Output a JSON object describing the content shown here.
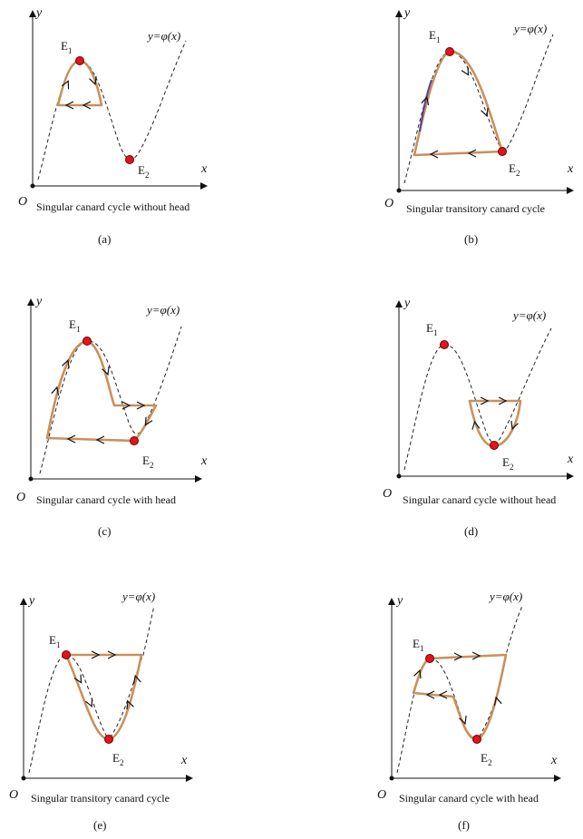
{
  "panels": [
    {
      "id": "a",
      "caption": "Singular canard  cycle without head",
      "sub": "(a)",
      "curve": "y=φ(x)",
      "origin": "O",
      "x": "x",
      "y": "y",
      "e1": "E",
      "e2": "E",
      "e1sub": "1",
      "e2sub": "2"
    },
    {
      "id": "b",
      "caption": "Singular transitory canard  cycle",
      "sub": "(b)",
      "curve": "y=φ(x)",
      "origin": "O",
      "x": "x",
      "y": "y",
      "e1": "E",
      "e2": "E",
      "e1sub": "1",
      "e2sub": "2"
    },
    {
      "id": "c",
      "caption": "Singular canard  cycle with head",
      "sub": "(c)",
      "curve": "y=φ(x)",
      "origin": "O",
      "x": "x",
      "y": "y",
      "e1": "E",
      "e2": "E",
      "e1sub": "1",
      "e2sub": "2"
    },
    {
      "id": "d",
      "caption": "Singular canard  cycle without head",
      "sub": "(d)",
      "curve": "y=φ(x)",
      "origin": "O",
      "x": "x",
      "y": "y",
      "e1": "E",
      "e2": "E",
      "e1sub": "1",
      "e2sub": "2"
    },
    {
      "id": "e",
      "caption": "Singular transitory canard  cycle",
      "sub": "(e)",
      "curve": "y=φ(x)",
      "origin": "O",
      "x": "x",
      "y": "y",
      "e1": "E",
      "e2": "E",
      "e1sub": "1",
      "e2sub": "2"
    },
    {
      "id": "f",
      "caption": "Singular canard  cycle with head",
      "sub": "(f)",
      "curve": "y=φ(x)",
      "origin": "O",
      "x": "x",
      "y": "y",
      "e1": "E",
      "e2": "E",
      "e1sub": "1",
      "e2sub": "2"
    }
  ]
}
